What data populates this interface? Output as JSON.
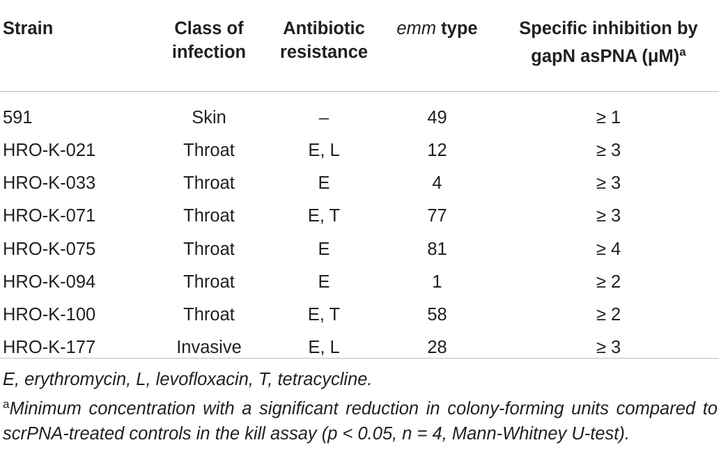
{
  "table": {
    "headers": {
      "strain": "Strain",
      "class_line1": "Class of",
      "class_line2": "infection",
      "antibiotic_line1": "Antibiotic",
      "antibiotic_line2": "resistance",
      "emm_italic": "emm",
      "emm_rest": " type",
      "inhibition_line1": "Specific inhibition by",
      "inhibition_line2": "gapN asPNA (μM)",
      "inhibition_sup": "a"
    },
    "rows": [
      {
        "strain": "591",
        "class": "Skin",
        "resistance": "–",
        "emm": "49",
        "inhibition": "≥ 1"
      },
      {
        "strain": "HRO-K-021",
        "class": "Throat",
        "resistance": "E, L",
        "emm": "12",
        "inhibition": "≥ 3"
      },
      {
        "strain": "HRO-K-033",
        "class": "Throat",
        "resistance": "E",
        "emm": "4",
        "inhibition": "≥ 3"
      },
      {
        "strain": "HRO-K-071",
        "class": "Throat",
        "resistance": "E, T",
        "emm": "77",
        "inhibition": "≥ 3"
      },
      {
        "strain": "HRO-K-075",
        "class": "Throat",
        "resistance": "E",
        "emm": "81",
        "inhibition": "≥ 4"
      },
      {
        "strain": "HRO-K-094",
        "class": "Throat",
        "resistance": "E",
        "emm": "1",
        "inhibition": "≥ 2"
      },
      {
        "strain": "HRO-K-100",
        "class": "Throat",
        "resistance": "E, T",
        "emm": "58",
        "inhibition": "≥ 2"
      },
      {
        "strain": "HRO-K-177",
        "class": "Invasive",
        "resistance": "E, L",
        "emm": "28",
        "inhibition": "≥ 3"
      }
    ]
  },
  "footnotes": {
    "abbreviations": "E, erythromycin, L, levofloxacin, T, tetracycline.",
    "a_marker": "a",
    "a_text": "Minimum concentration with a significant reduction in colony-forming units compared to scrPNA-treated controls in the kill assay (p < 0.05, n = 4, Mann-Whitney U-test)."
  }
}
